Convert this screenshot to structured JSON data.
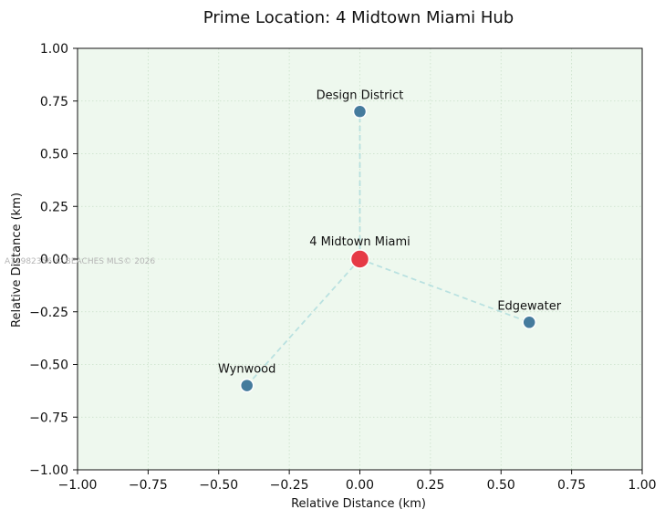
{
  "chart_data": {
    "type": "scatter",
    "title": "Prime Location: 4 Midtown Miami Hub",
    "xlabel": "Relative Distance (km)",
    "ylabel": "Relative Distance (km)",
    "xlim": [
      -1.0,
      1.0
    ],
    "ylim": [
      -1.0,
      1.0
    ],
    "xticks": [
      -1.0,
      -0.75,
      -0.5,
      -0.25,
      0.0,
      0.25,
      0.5,
      0.75,
      1.0
    ],
    "yticks": [
      -1.0,
      -0.75,
      -0.5,
      -0.25,
      0.0,
      0.25,
      0.5,
      0.75,
      1.0
    ],
    "xtick_labels": [
      "−1.00",
      "−0.75",
      "−0.50",
      "−0.25",
      "0.00",
      "0.25",
      "0.50",
      "0.75",
      "1.00"
    ],
    "ytick_labels": [
      "−1.00",
      "−0.75",
      "−0.50",
      "−0.25",
      "0.00",
      "0.25",
      "0.50",
      "0.75",
      "1.00"
    ],
    "grid": true,
    "grid_style": "dotted",
    "background_color": "#eef8ee",
    "grid_color": "#c8dfc8",
    "hub": {
      "name": "4 Midtown Miami",
      "x": 0.0,
      "y": 0.0,
      "color": "#e63946"
    },
    "points": [
      {
        "name": "Design District",
        "x": 0.0,
        "y": 0.7
      },
      {
        "name": "Edgewater",
        "x": 0.6,
        "y": -0.3
      },
      {
        "name": "Wynwood",
        "x": -0.4,
        "y": -0.6
      }
    ],
    "point_color": "#457b9d",
    "connector_color": "#a8dadc",
    "connector_style": "dashed",
    "watermark": "A11982356 © BEACHES MLS© 2026"
  }
}
